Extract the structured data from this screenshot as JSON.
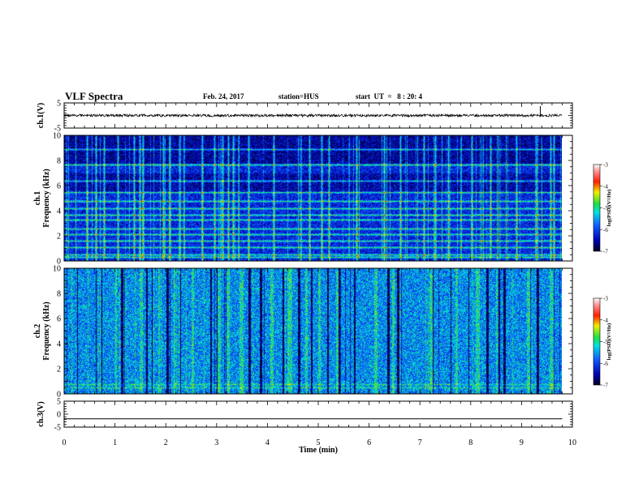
{
  "header": {
    "title": "VLF Spectra",
    "date": "Feb. 24, 2017",
    "station": "station=HUS",
    "start": "start  UT  =   8 : 20: 4"
  },
  "chart_data": [
    {
      "type": "line",
      "panel": "ch1-waveform",
      "ylabel": "ch.1(V)",
      "ylim": [
        -5,
        5
      ],
      "yticks": [
        "5",
        "-5"
      ],
      "baseline_value": 0,
      "spike_at_min": 9.37,
      "color": "#000000"
    },
    {
      "type": "heatmap",
      "panel": "ch1-spectrogram",
      "ylabel": "ch.1\nFrequency  (kHz)",
      "ylim": [
        0,
        10
      ],
      "yticks": [
        "0",
        "2",
        "4",
        "6",
        "8",
        "10"
      ],
      "colorbar": {
        "label": "log(PSD)(V²/Hz)",
        "ticks": [
          "-3",
          "-4",
          "-5",
          "-6",
          "-7"
        ],
        "range": [
          -7,
          -3
        ]
      },
      "background_level": -6.2,
      "horizontal_bands_khz": [
        0.3,
        0.5,
        1.1,
        1.6,
        2.1,
        2.6,
        3.3,
        3.7,
        4.2,
        4.8,
        5.5,
        6.4,
        7.7,
        8.9
      ],
      "vertical_sferics_min": [
        0.45,
        0.62,
        0.78,
        1.05,
        1.38,
        1.48,
        1.55,
        1.95,
        2.08,
        2.72,
        2.96,
        3.12,
        3.22,
        3.33,
        3.62,
        4.12,
        4.82,
        5.06,
        5.2,
        5.75,
        6.3,
        6.62,
        7.08,
        7.3,
        7.55,
        8.02,
        8.38,
        8.9,
        9.28,
        9.57,
        9.63
      ]
    },
    {
      "type": "heatmap",
      "panel": "ch2-spectrogram",
      "ylabel": "ch.2\nFrequency  (kHz)",
      "ylim": [
        0,
        10
      ],
      "yticks": [
        "0",
        "2",
        "4",
        "6",
        "8",
        "10"
      ],
      "colorbar": {
        "label": "log(PSD)(V²/Hz)",
        "ticks": [
          "-3",
          "-4",
          "-5",
          "-6",
          "-7"
        ],
        "range": [
          -7,
          -3
        ]
      },
      "background_level": -5.6,
      "horizontal_bands_khz": [
        0.5,
        0.8
      ],
      "dark_gaps_min": [
        0.25,
        0.62,
        0.73,
        1.12,
        1.62,
        1.72,
        2.02,
        2.28,
        2.88,
        3.0,
        3.62,
        3.85,
        4.3,
        4.6,
        4.85,
        5.18,
        5.4,
        5.7,
        6.35,
        6.55,
        7.25,
        7.6,
        7.95,
        8.3,
        8.55,
        8.65,
        9.3
      ],
      "bright_bursts_min": [
        1.0,
        1.5,
        1.85,
        2.15,
        2.5,
        3.0,
        3.2,
        3.45,
        4.05,
        4.4,
        4.75,
        5.0,
        5.35,
        6.1,
        6.45,
        7.2,
        7.7,
        8.1,
        8.5,
        9.1,
        9.55
      ]
    },
    {
      "type": "line",
      "panel": "ch3-waveform",
      "ylabel": "ch.3(V)",
      "ylim": [
        -5,
        5
      ],
      "yticks": [
        "5",
        "0",
        "-5"
      ],
      "baseline_value": -1.8,
      "color": "#000000"
    }
  ],
  "x_axis": {
    "label": "Time  (min)",
    "range": [
      0,
      10
    ],
    "data_end_min": 9.8,
    "ticks": [
      "0",
      "1",
      "2",
      "3",
      "4",
      "5",
      "6",
      "7",
      "8",
      "9",
      "10"
    ]
  }
}
